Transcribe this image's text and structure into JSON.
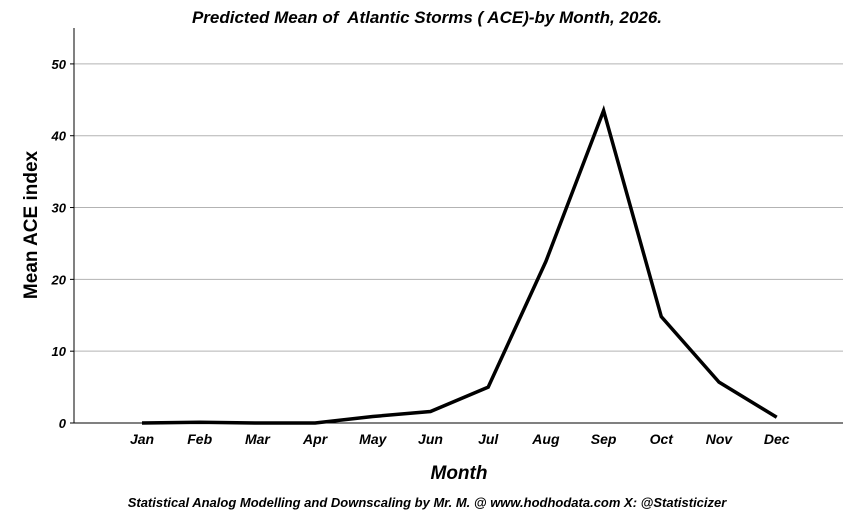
{
  "chart_data": {
    "type": "line",
    "title": "Predicted Mean of  Atlantic Storms ( ACE)-by Month, 2026.",
    "xlabel": "Month",
    "ylabel": "Mean ACE index",
    "categories": [
      "Jan",
      "Feb",
      "Mar",
      "Apr",
      "May",
      "Jun",
      "Jul",
      "Aug",
      "Sep",
      "Oct",
      "Nov",
      "Dec"
    ],
    "values": [
      0.0,
      0.1,
      0.0,
      0.0,
      0.9,
      1.6,
      5.0,
      22.5,
      43.5,
      14.8,
      5.7,
      0.8
    ],
    "ylim": [
      0,
      55
    ],
    "yticks": [
      0,
      10,
      20,
      30,
      40,
      50
    ],
    "grid": "horizontal",
    "line_color": "#000000"
  },
  "footer": "Statistical Analog Modelling and Downscaling by Mr. M. @ www.hodhodata.com X: @Statisticizer"
}
